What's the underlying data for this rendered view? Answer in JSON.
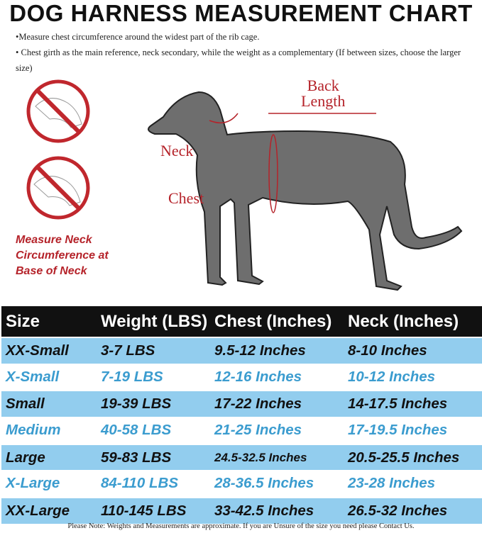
{
  "title": "DOG HARNESS MEASUREMENT CHART",
  "notes": [
    "•Measure chest circumference around the widest part of the rib cage.",
    "• Chest girth as the main reference, neck secondary, while the weight as a complementary (If between sizes, choose the larger size)"
  ],
  "diagram": {
    "back": "Back",
    "length": "Length",
    "neck": "Neck",
    "chest": "Chest",
    "warning": [
      "Measure Neck",
      "Circumference at",
      "Base of Neck"
    ]
  },
  "table": {
    "headers": [
      "Size",
      "Weight (LBS)",
      "Chest (Inches)",
      "Neck (Inches)"
    ],
    "rows": [
      [
        "XX-Small",
        "3-7 LBS",
        "9.5-12 Inches",
        "8-10 Inches"
      ],
      [
        "X-Small",
        "7-19 LBS",
        "12-16 Inches",
        "10-12 Inches"
      ],
      [
        "Small",
        "19-39 LBS",
        "17-22 Inches",
        "14-17.5 Inches"
      ],
      [
        "Medium",
        "40-58 LBS",
        "21-25 Inches",
        "17-19.5 Inches"
      ],
      [
        "Large",
        "59-83 LBS",
        "24.5-32.5 Inches",
        "20.5-25.5 Inches"
      ],
      [
        "X-Large",
        "84-110 LBS",
        "28-36.5 Inches",
        "23-28 Inches"
      ],
      [
        "XX-Large",
        "110-145 LBS",
        "33-42.5 Inches",
        "26.5-32 Inches"
      ]
    ]
  },
  "footer": "Please Note: Weights and Measurements are approximate. If you are Unsure of the size you need please Contact Us.",
  "colors": {
    "blue_row": "#92cdee",
    "blue_text": "#3b9ccf",
    "red": "#b5232a",
    "header": "#111111"
  }
}
